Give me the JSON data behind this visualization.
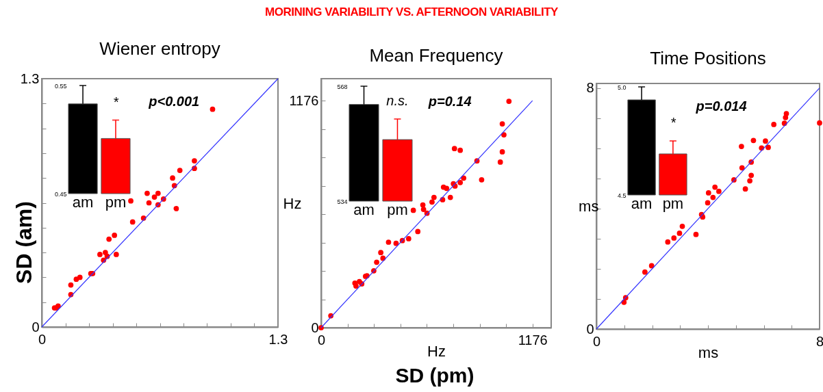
{
  "chart_data": [
    {
      "type": "other",
      "title": "MORINING VARIABILITY VS. AFTERNOON VARIABILITY",
      "xlabel": "SD (pm)",
      "ylabel": "SD (am)"
    },
    {
      "type": "scatter",
      "title": "Wiener entropy",
      "xlim": [
        0,
        1.3
      ],
      "ylim": [
        0,
        1.3
      ],
      "xticks": [
        0,
        {
          "value": 0.13,
          "label": null
        },
        {
          "value": 0.26,
          "label": null
        },
        {
          "value": 0.39,
          "label": null
        },
        {
          "value": 0.52,
          "label": null
        },
        {
          "value": 0.65,
          "label": null
        },
        {
          "value": 0.78,
          "label": null
        },
        {
          "value": 0.91,
          "label": null
        },
        {
          "value": 1.04,
          "label": null
        },
        {
          "value": 1.17,
          "label": null
        },
        1.3
      ],
      "yticks": [
        0,
        {
          "value": 0.13,
          "label": null
        },
        {
          "value": 0.26,
          "label": null
        },
        {
          "value": 0.39,
          "label": null
        },
        {
          "value": 0.52,
          "label": null
        },
        {
          "value": 0.65,
          "label": null
        },
        {
          "value": 0.78,
          "label": null
        },
        {
          "value": 0.91,
          "label": null
        },
        {
          "value": 1.04,
          "label": null
        },
        {
          "value": 1.17,
          "label": null
        },
        1.3
      ],
      "annotations": [
        "p<0.001"
      ],
      "series": [
        {
          "type": "scatter",
          "marker": "circle",
          "color": "#ff0000",
          "x": [
            0.07,
            0.08,
            0.09,
            0.16,
            0.16,
            0.19,
            0.21,
            0.27,
            0.28,
            0.32,
            0.34,
            0.35,
            0.36,
            0.37,
            0.4,
            0.41,
            0.49,
            0.5,
            0.56,
            0.58,
            0.59,
            0.62,
            0.64,
            0.64,
            0.67,
            0.72,
            0.73,
            0.74,
            0.76,
            0.84,
            0.84,
            0.94
          ],
          "values": [
            0.1,
            0.1,
            0.11,
            0.17,
            0.22,
            0.25,
            0.26,
            0.28,
            0.28,
            0.38,
            0.35,
            0.39,
            0.37,
            0.46,
            0.48,
            0.38,
            0.66,
            0.55,
            0.57,
            0.7,
            0.65,
            0.68,
            0.7,
            0.64,
            0.67,
            0.78,
            0.74,
            0.62,
            0.82,
            0.87,
            0.83,
            1.14
          ]
        },
        {
          "type": "line",
          "color": "#3333ff",
          "x": [
            0,
            1.3
          ],
          "values": [
            0,
            1.3
          ]
        }
      ]
    },
    {
      "type": "bar",
      "categories": [
        "am",
        "pm"
      ],
      "colors": [
        "#000000",
        "#ff0000"
      ],
      "values": [
        0.533,
        0.501
      ],
      "errors": [
        [
          0.533,
          0.55
        ],
        [
          0.501,
          0.518
        ]
      ],
      "ylim": [
        0.45,
        0.55
      ],
      "yticks": [
        0.45,
        0.55
      ],
      "annotations": [
        "*"
      ]
    },
    {
      "type": "scatter",
      "title": "Mean Frequency",
      "xlabel": "Hz",
      "ylabel": "Hz",
      "xlim": [
        0,
        1280
      ],
      "ylim": [
        0,
        1290
      ],
      "xticks": [
        0,
        {
          "value": 147,
          "label": null
        },
        {
          "value": 294,
          "label": null
        },
        {
          "value": 441,
          "label": null
        },
        {
          "value": 588,
          "label": null
        },
        {
          "value": 735,
          "label": null
        },
        {
          "value": 882,
          "label": null
        },
        {
          "value": 1029,
          "label": null
        },
        1176
      ],
      "yticks": [
        0,
        {
          "value": 147,
          "label": null
        },
        {
          "value": 294,
          "label": null
        },
        {
          "value": 441,
          "label": null
        },
        {
          "value": 588,
          "label": null
        },
        {
          "value": 735,
          "label": null
        },
        {
          "value": 882,
          "label": null
        },
        {
          "value": 1029,
          "label": null
        },
        1176
      ],
      "annotations": [
        "p=0.14"
      ],
      "series": [
        {
          "type": "scatter",
          "marker": "circle",
          "color": "#ff0000",
          "x": [
            0,
            54,
            188,
            194,
            213,
            226,
            247,
            255,
            293,
            309,
            332,
            344,
            375,
            417,
            452,
            487,
            513,
            538,
            566,
            570,
            589,
            617,
            628,
            676,
            681,
            698,
            719,
            736,
            742,
            745,
            774,
            774,
            793,
            867,
            893,
            997,
            1008,
            1008,
            1017,
            1045
          ],
          "values": [
            0,
            62,
            231,
            216,
            239,
            227,
            266,
            269,
            295,
            339,
            389,
            360,
            443,
            437,
            451,
            461,
            608,
            498,
            636,
            613,
            593,
            651,
            675,
            663,
            728,
            722,
            675,
            746,
            928,
            734,
            919,
            752,
            775,
            864,
            766,
            858,
            911,
            1056,
            999,
            1173
          ]
        },
        {
          "type": "line",
          "color": "#3333ff",
          "x": [
            0,
            1176
          ],
          "values": [
            0,
            1176
          ]
        }
      ]
    },
    {
      "type": "bar",
      "categories": [
        "am",
        "pm"
      ],
      "colors": [
        "#000000",
        "#ff0000"
      ],
      "values": [
        562.6,
        552.2
      ],
      "errors": [
        [
          562.6,
          568
        ],
        [
          552.2,
          558.3
        ]
      ],
      "ylim": [
        534,
        568
      ],
      "yticks": [
        534,
        568
      ],
      "annotations": [
        "n.s."
      ]
    },
    {
      "type": "scatter",
      "title": "Time Positions",
      "xlabel": "ms",
      "ylabel": "ms",
      "xlim": [
        0,
        8
      ],
      "ylim": [
        0,
        8.15
      ],
      "xticks": [
        0,
        {
          "value": 1,
          "label": null
        },
        {
          "value": 2,
          "label": null
        },
        {
          "value": 3,
          "label": null
        },
        {
          "value": 4,
          "label": null
        },
        {
          "value": 5,
          "label": null
        },
        {
          "value": 6,
          "label": null
        },
        {
          "value": 7,
          "label": null
        },
        8
      ],
      "yticks": [
        0,
        {
          "value": 1,
          "label": null
        },
        {
          "value": 2,
          "label": null
        },
        {
          "value": 3,
          "label": null
        },
        {
          "value": 4,
          "label": null
        },
        {
          "value": 5,
          "label": null
        },
        {
          "value": 6,
          "label": null
        },
        {
          "value": 7,
          "label": null
        },
        8
      ],
      "annotations": [
        "p=0.014"
      ],
      "series": [
        {
          "type": "scatter",
          "marker": "circle",
          "color": "#ff0000",
          "x": [
            0.99,
            1.05,
            1.74,
            1.98,
            2.56,
            2.78,
            2.98,
            3.08,
            3.57,
            3.77,
            3.81,
            3.99,
            4.02,
            4.18,
            4.25,
            4.39,
            4.93,
            5.2,
            5.22,
            5.34,
            5.5,
            5.55,
            5.55,
            5.63,
            5.92,
            6.06,
            6.16,
            6.36,
            6.74,
            6.78,
            6.81,
            8.0
          ],
          "values": [
            0.89,
            1.04,
            1.89,
            2.1,
            2.89,
            3.02,
            3.18,
            3.41,
            3.14,
            3.8,
            3.72,
            4.19,
            4.52,
            4.37,
            4.71,
            4.57,
            4.95,
            6.06,
            5.35,
            4.65,
            4.92,
            5.1,
            5.54,
            6.26,
            6.01,
            6.24,
            6.03,
            6.79,
            6.83,
            7.02,
            7.15,
            6.84
          ]
        },
        {
          "type": "line",
          "color": "#3333ff",
          "x": [
            0,
            8
          ],
          "values": [
            0,
            8
          ]
        }
      ]
    },
    {
      "type": "bar",
      "categories": [
        "am",
        "pm"
      ],
      "colors": [
        "#000000",
        "#ff0000"
      ],
      "values": [
        4.94,
        4.69
      ],
      "errors": [
        [
          4.94,
          5.0
        ],
        [
          4.69,
          4.75
        ]
      ],
      "ylim": [
        4.5,
        5.0
      ],
      "yticks": [
        4.5,
        {
          "value": 5.0,
          "label": "5.0"
        }
      ],
      "annotations": [
        "*"
      ]
    }
  ]
}
